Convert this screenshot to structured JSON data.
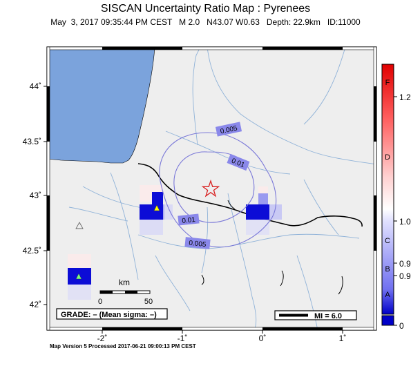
{
  "title": "SISCAN Uncertainty Ratio Map : Pyrenees",
  "subtitle": "May  3, 2017 09:35:44 PM CEST   M 2.0   N43.07 W0.63   Depth: 22.9km   ID:11000",
  "footer": "Map Version 5 Processed 2017-06-21 09:00:13 PM CEST",
  "axes": {
    "lon_ticks": [
      "-2˚",
      "-1˚",
      "0˚",
      "1˚"
    ],
    "lat_ticks": [
      "44˚",
      "43.5˚",
      "43˚",
      "42.5˚",
      "42˚"
    ]
  },
  "contours": [
    {
      "label": "0.005"
    },
    {
      "label": "0.01"
    },
    {
      "label": "0.01"
    },
    {
      "label": "0.005"
    }
  ],
  "scale_bar": {
    "unit": "km",
    "start": "0",
    "end": "50"
  },
  "grade_text": "GRADE: – (Mean sigma: –)",
  "legend": {
    "mi_text": "MI = 6.0"
  },
  "colorbar": {
    "letters": [
      "F",
      "D",
      "C",
      "B",
      "A"
    ],
    "values": [
      "1.2",
      "1.0",
      "0.9",
      "0.9",
      "0"
    ]
  },
  "colors": {
    "sea": "#7ba3dc",
    "land": "#eeeeee",
    "rivers": "#8fb2d8",
    "border": "#000000",
    "contour": "#7a78d8",
    "cell_dark": "#1414d0",
    "epicenter": "#d82020",
    "station": "#ffff00"
  },
  "icons": [
    "epicenter-star-icon",
    "station-triangle-icon"
  ]
}
